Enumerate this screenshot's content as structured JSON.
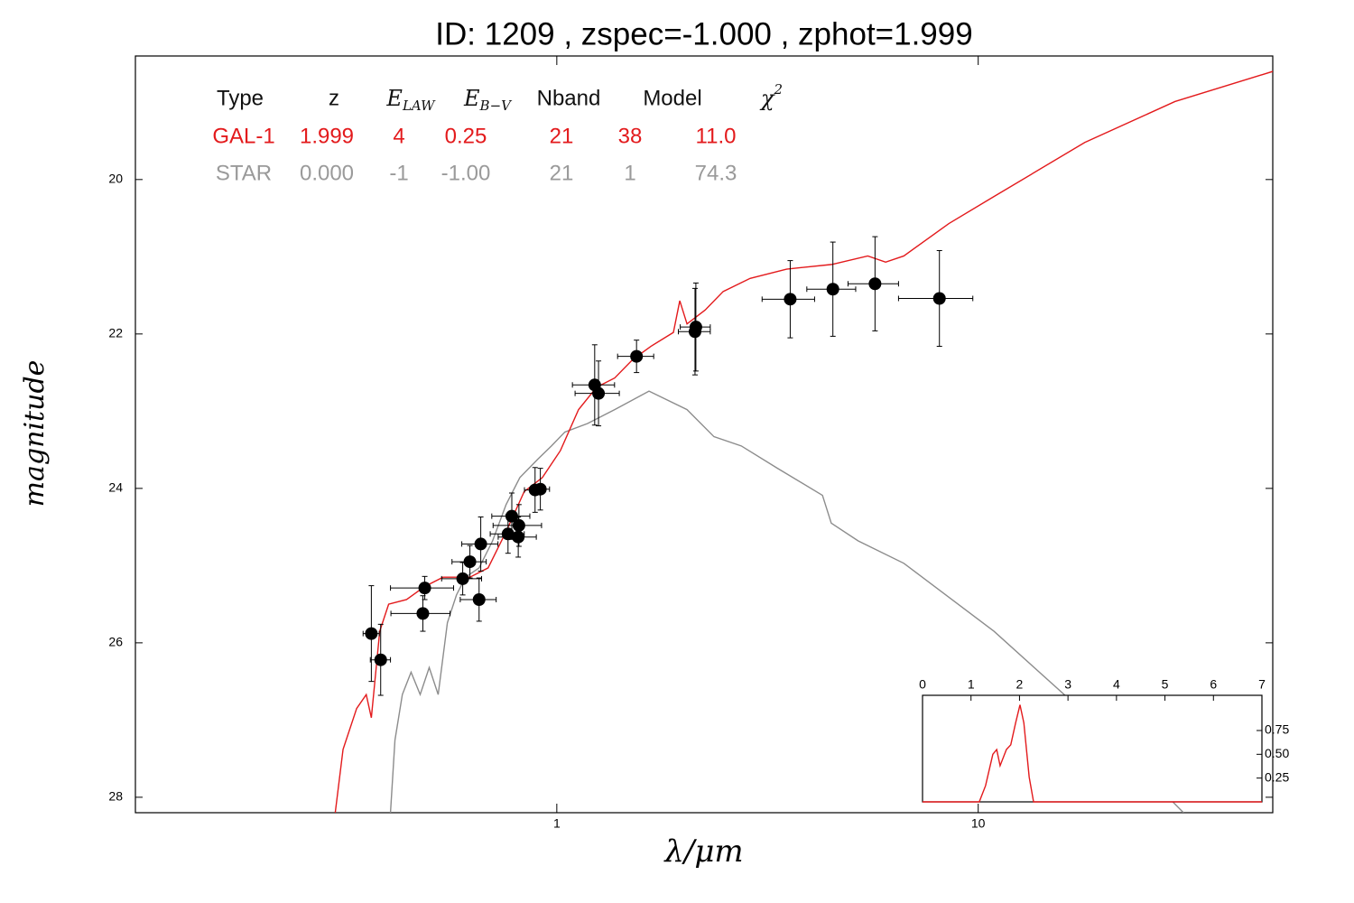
{
  "chart_data": [
    {
      "type": "scatter",
      "title": "ID:  1209  , zspec=-1.000 , zphot=1.999",
      "x_label": "λ/μm",
      "y_label": "magnitude",
      "log_x": true,
      "xlim": [
        0.1,
        50
      ],
      "ylim": [
        28.2,
        18.4
      ],
      "xticks": [
        1,
        10
      ],
      "yticks": [
        20,
        22,
        24,
        26,
        28
      ],
      "series": [
        {
          "color": "#e31a1c",
          "x": [
            0.298,
            0.311,
            0.335,
            0.353,
            0.363,
            0.38,
            0.399,
            0.44,
            0.486,
            0.537,
            0.622,
            0.687,
            0.758,
            0.837,
            0.924,
            1.02,
            1.126,
            1.243,
            1.372,
            1.515,
            1.672,
            1.891,
            1.958,
            2.037,
            2.249,
            2.482,
            2.876,
            3.51,
            4.49,
            5.47,
            6.03,
            6.66,
            8.52,
            10.9,
            17.9,
            29.3,
            50
          ],
          "values": [
            28.2,
            27.38,
            26.85,
            26.67,
            26.97,
            25.85,
            25.5,
            25.44,
            25.27,
            25.15,
            25.15,
            25.03,
            24.56,
            24.04,
            23.86,
            23.51,
            22.98,
            22.69,
            22.57,
            22.33,
            22.16,
            21.98,
            21.57,
            21.87,
            21.69,
            21.45,
            21.28,
            21.16,
            21.1,
            20.99,
            21.07,
            20.99,
            20.57,
            20.22,
            19.52,
            18.99,
            18.6
          ]
        },
        {
          "color": "#8c8c8c",
          "x": [
            0.403,
            0.413,
            0.43,
            0.451,
            0.474,
            0.498,
            0.523,
            0.55,
            0.578,
            0.607,
            0.654,
            0.704,
            0.758,
            0.817,
            0.902,
            0.971,
            1.045,
            1.183,
            1.372,
            1.655,
            2.037,
            2.36,
            2.74,
            3.34,
            4.27,
            4.48,
            5.19,
            6.66,
            10.9,
            17.9,
            30.7
          ],
          "values": [
            28.2,
            27.26,
            26.67,
            26.38,
            26.67,
            26.32,
            26.67,
            25.74,
            25.38,
            25.15,
            25.03,
            24.68,
            24.21,
            23.86,
            23.62,
            23.45,
            23.27,
            23.16,
            22.98,
            22.74,
            22.98,
            23.33,
            23.45,
            23.74,
            24.09,
            24.45,
            24.68,
            24.97,
            25.85,
            26.91,
            28.2
          ]
        }
      ],
      "observations": {
        "color": "#000000",
        "x": [
          0.363,
          0.382,
          0.486,
          0.481,
          0.598,
          0.622,
          0.66,
          0.654,
          0.766,
          0.782,
          0.813,
          0.81,
          0.888,
          0.914,
          1.23,
          1.256,
          1.546,
          2.138,
          2.128,
          3.58,
          4.52,
          5.69,
          8.09
        ],
        "values": [
          25.88,
          26.22,
          25.29,
          25.62,
          25.17,
          24.95,
          24.72,
          25.44,
          24.59,
          24.36,
          24.48,
          24.63,
          24.02,
          24.01,
          22.66,
          22.77,
          22.29,
          21.91,
          21.97,
          21.55,
          21.42,
          21.35,
          21.54
        ],
        "x_err": [
          0.016,
          0.021,
          0.083,
          0.077,
          0.065,
          0.058,
          0.065,
          0.064,
          0.071,
          0.081,
          0.107,
          0.084,
          0.05,
          0.047,
          0.141,
          0.151,
          0.152,
          0.175,
          0.185,
          0.51,
          0.6,
          0.78,
          1.62
        ],
        "y_err": [
          0.62,
          0.46,
          0.15,
          0.23,
          0.21,
          0.21,
          0.35,
          0.28,
          0.25,
          0.3,
          0.27,
          0.26,
          0.29,
          0.27,
          0.52,
          0.42,
          0.21,
          0.57,
          0.56,
          0.5,
          0.61,
          0.61,
          0.62
        ]
      },
      "table": {
        "header": [
          "Type",
          "z",
          {
            "base": "E",
            "sub": "LAW"
          },
          {
            "base": "E",
            "sub": "B−V"
          },
          "Nband",
          "Model",
          {
            "base": "χ",
            "sup": "2"
          }
        ],
        "rows": [
          {
            "color": "#e31a1c",
            "cells": [
              "GAL-1",
              "1.999",
              "4",
              "0.25",
              "21",
              "38",
              "11.0"
            ]
          },
          {
            "color": "#9a9a9a",
            "cells": [
              "STAR",
              "0.000",
              "-1",
              "-1.00",
              "21",
              "1",
              "74.3"
            ]
          }
        ]
      }
    },
    {
      "type": "line",
      "xlim": [
        0,
        7
      ],
      "ylim": [
        0,
        1.12
      ],
      "xticks": [
        0,
        1,
        2,
        3,
        4,
        5,
        6,
        7
      ],
      "yticks": [
        0.25,
        {
          "value": 0.5,
          "label": "0.50"
        },
        0.75
      ],
      "series": [
        {
          "color": "#e31a1c",
          "x": [
            0,
            1.17,
            1.3,
            1.45,
            1.53,
            1.6,
            1.73,
            1.82,
            1.92,
            2.01,
            2.09,
            2.2,
            2.29,
            7
          ],
          "values": [
            0,
            0,
            0.17,
            0.5,
            0.55,
            0.38,
            0.55,
            0.6,
            0.83,
            1.02,
            0.83,
            0.26,
            0,
            0
          ]
        }
      ]
    }
  ]
}
